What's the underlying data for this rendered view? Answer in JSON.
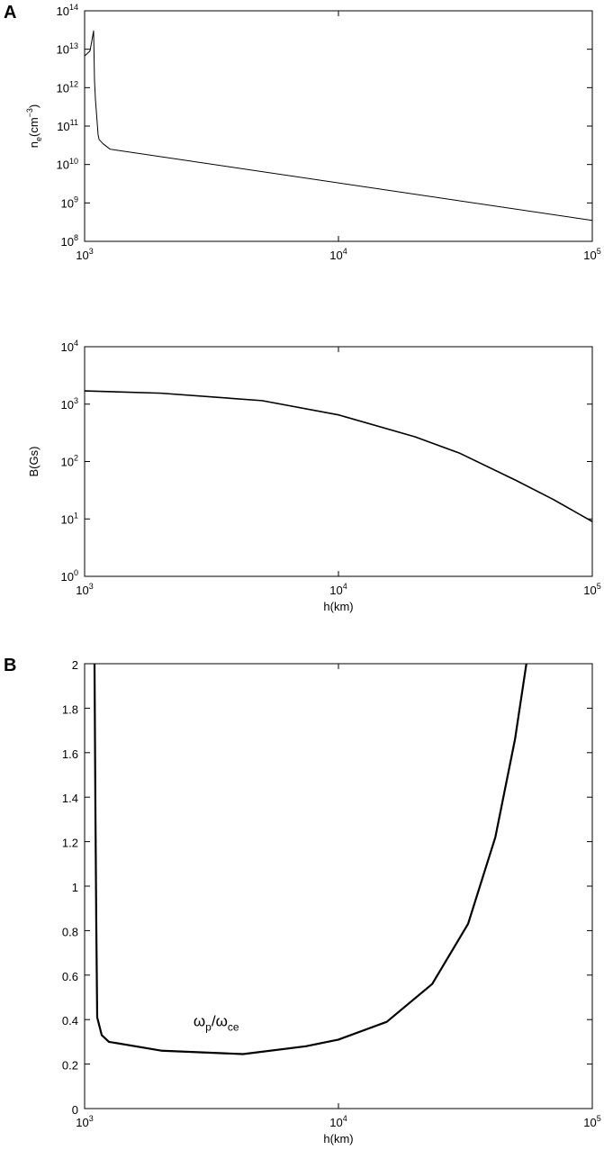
{
  "chart_data": [
    {
      "type": "line",
      "panel_label": "A",
      "xscale": "log",
      "yscale": "log",
      "xlim": [
        1000,
        100000
      ],
      "xticks": [
        {
          "value": 1000,
          "label": "10^3"
        },
        {
          "value": 10000,
          "label": "10^4"
        },
        {
          "value": 100000,
          "label": "10^5"
        }
      ],
      "ylim": [
        100000000.0,
        100000000000000.0
      ],
      "yticks": [
        {
          "value": 100000000.0,
          "label": "10^8"
        },
        {
          "value": 1000000000.0,
          "label": "10^9"
        },
        {
          "value": 10000000000.0,
          "label": "10^10"
        },
        {
          "value": 100000000000.0,
          "label": "10^11"
        },
        {
          "value": 1000000000000.0,
          "label": "10^12"
        },
        {
          "value": 10000000000000.0,
          "label": "10^13"
        },
        {
          "value": 100000000000000.0,
          "label": "10^14"
        }
      ],
      "y_label": "n_e(cm^−3)",
      "color": "#000000",
      "x": [
        1000,
        1050,
        1085,
        1094,
        1103,
        1130,
        1140,
        1180,
        1260,
        100000
      ],
      "values": [
        6700000000000.0,
        9000000000000.0,
        30000000000000.0,
        1500000000000.0,
        500000000000.0,
        60000000000.0,
        45000000000.0,
        35000000000.0,
        25000000000.0,
        350000000.0
      ]
    },
    {
      "type": "line",
      "xscale": "log",
      "yscale": "log",
      "xlim": [
        1000,
        100000
      ],
      "xticks": [
        {
          "value": 1000,
          "label": "10^3"
        },
        {
          "value": 10000,
          "label": "10^4"
        },
        {
          "value": 100000,
          "label": "10^5"
        }
      ],
      "ylim": [
        1,
        10000
      ],
      "yticks": [
        {
          "value": 1,
          "label": "10^0"
        },
        {
          "value": 10,
          "label": "10^1"
        },
        {
          "value": 100,
          "label": "10^2"
        },
        {
          "value": 1000,
          "label": "10^3"
        },
        {
          "value": 10000,
          "label": "10^4"
        }
      ],
      "y_label": "B(Gs)",
      "x_label": "h(km)",
      "color": "#000000",
      "x": [
        1000,
        2000,
        5000,
        10000,
        20000,
        30000,
        50000,
        70000,
        100000
      ],
      "values": [
        1700,
        1550,
        1150,
        650,
        270,
        140,
        47,
        22,
        9
      ]
    },
    {
      "type": "line",
      "panel_label": "B",
      "xscale": "log",
      "yscale": "linear",
      "xlim": [
        1000,
        100000
      ],
      "xticks": [
        {
          "value": 1000,
          "label": "10^3"
        },
        {
          "value": 10000,
          "label": "10^4"
        },
        {
          "value": 100000,
          "label": "10^5"
        }
      ],
      "ylim": [
        0,
        2
      ],
      "yticks": [
        0,
        0.2,
        0.4,
        0.6,
        0.8,
        1,
        1.2,
        1.4,
        1.6,
        1.8,
        2
      ],
      "x_label": "h(km)",
      "annotation": {
        "text": "ω_p/ω_ce",
        "x": 3300,
        "y": 0.37
      },
      "color": "#000000",
      "x": [
        1094,
        1103,
        1112,
        1121,
        1168,
        1247,
        2018,
        4210,
        7440,
        10000,
        15500,
        23400,
        32400,
        41500,
        49600,
        55000
      ],
      "values": [
        2.0,
        1.34,
        0.81,
        0.41,
        0.33,
        0.3,
        0.26,
        0.245,
        0.28,
        0.31,
        0.39,
        0.56,
        0.83,
        1.22,
        1.66,
        2.0
      ]
    }
  ]
}
